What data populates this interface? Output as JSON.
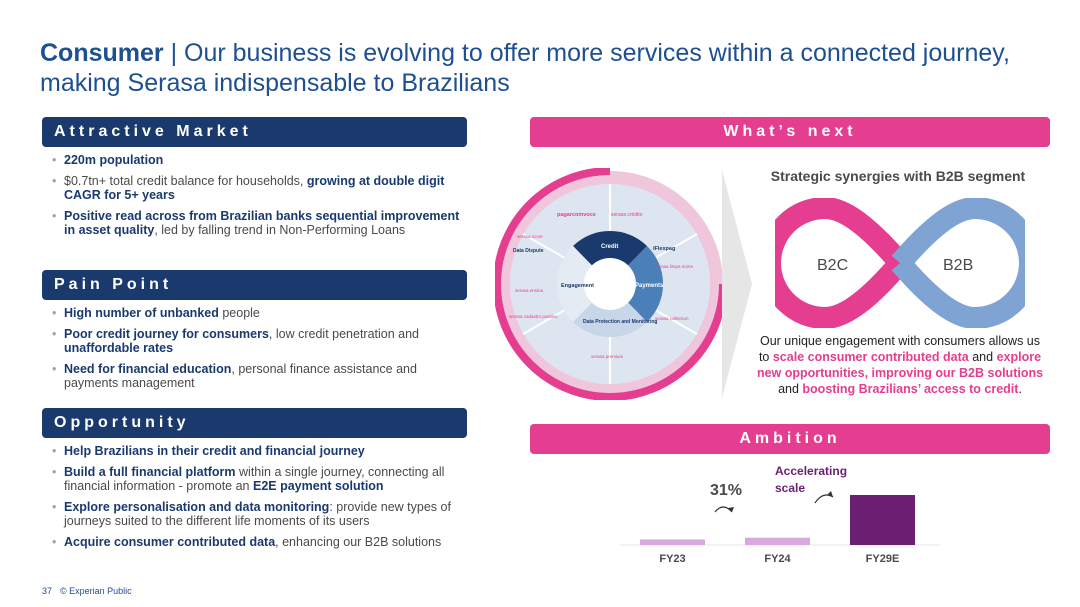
{
  "title": {
    "bold": "Consumer",
    "rest": " | Our business is evolving to offer more services within a connected journey, making Serasa indispensable to Brazilians"
  },
  "attractive": {
    "header": "Attractive Market",
    "b1_bold": "220m population",
    "b2_text": "$0.7tn+ total credit balance for households, ",
    "b2_bold": "growing at double digit CAGR for 5+ years",
    "b3_bold": "Positive read across from Brazilian banks sequential improvement in asset quality",
    "b3_text": ", led by falling trend in Non-Performing Loans"
  },
  "pain": {
    "header": "Pain Point",
    "b1_bold": "High number of unbanked",
    "b1_text": " people",
    "b2_bold": "Poor credit journey for consumers",
    "b2_text": ", low credit penetration and ",
    "b2_bold2": "unaffordable rates",
    "b3_bold": "Need for financial education",
    "b3_text": ", personal finance assistance and payments management"
  },
  "opportunity": {
    "header": "Opportunity",
    "b1_bold": "Help Brazilians in their credit and financial journey",
    "b2_bold": "Build a full financial platform",
    "b2_text": " within a single journey, connecting all financial information - promote an ",
    "b2_bold2": "E2E payment solution",
    "b3_bold": "Explore personalisation and data monitoring",
    "b3_text": ": provide new types of journeys suited to the different life moments of its users",
    "b4_bold": "Acquire consumer contributed data",
    "b4_text": ", enhancing our B2B solutions"
  },
  "whats_next": {
    "header": "What’s next",
    "wheel": {
      "inner": [
        "Credit",
        "Payments",
        "Data Protection and Monitoring",
        "Engagement"
      ],
      "outer": [
        "Data Dispute"
      ],
      "logos": [
        "pagarcomvoce",
        "serasa crédito",
        "serasa score",
        "iFlexpag",
        "serasa limpa nome",
        "serasa ensina",
        "serasa cadastro positivo",
        "serasa collection",
        "serasa premium"
      ]
    },
    "synergy_title": "Strategic synergies with B2B segment",
    "b2c": "B2C",
    "b2b": "B2B",
    "text1": "Our unique engagement with consumers allows us to ",
    "text1_bold": "scale consumer contributed data",
    "text2": " and ",
    "text2_bold": "explore new opportunities, improving our B2B solutions",
    "text3": " and ",
    "text3_bold": "boosting Brazilians’ access to credit",
    "text4": "."
  },
  "ambition": {
    "header": "Ambition"
  },
  "chart_data": {
    "type": "bar",
    "categories": [
      "FY23",
      "FY24",
      "FY29E"
    ],
    "values": [
      1,
      1.31,
      9
    ],
    "annotations": [
      "31%",
      "Accelerating scale"
    ],
    "colors": [
      "#d9a8de",
      "#d9a8de",
      "#6a1f73"
    ]
  },
  "footer": {
    "page": "37",
    "label": "© Experian Public"
  }
}
